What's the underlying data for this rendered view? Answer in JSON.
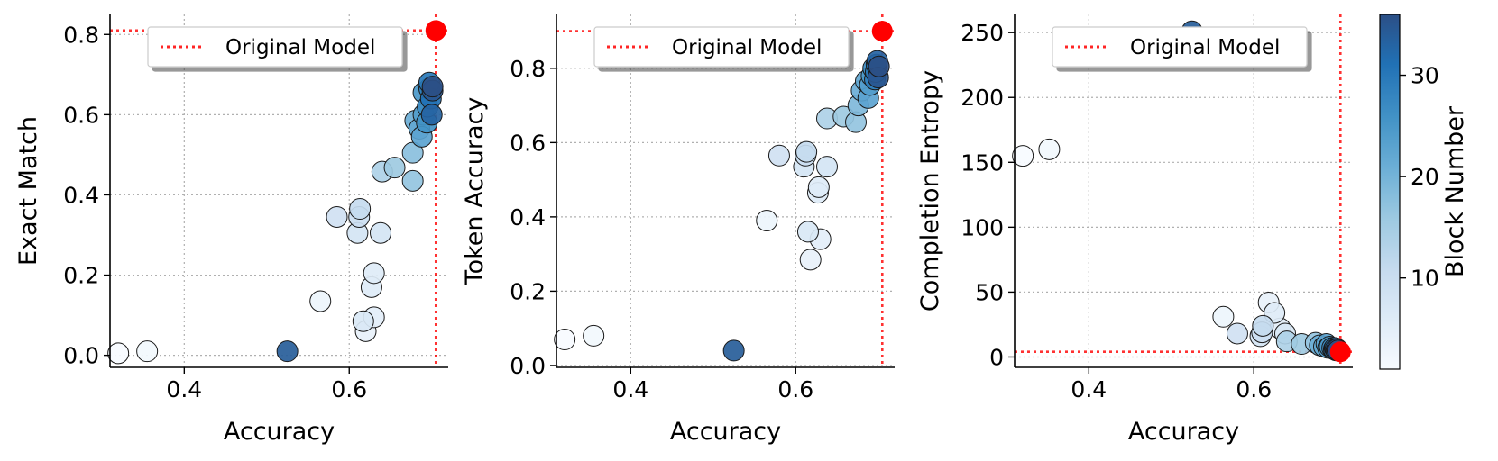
{
  "legend_label": "Original Model",
  "colors": {
    "reference": "#ff0000",
    "marker_edge": "#1a1a1a",
    "grid": "#b0b0b0",
    "colormap": [
      "#f7fbff",
      "#deebf7",
      "#c6dbef",
      "#9ecae1",
      "#6baed6",
      "#4292c6",
      "#2171b5",
      "#2b4f86"
    ]
  },
  "colorbar": {
    "label": "Block Number",
    "min": 1,
    "max": 36,
    "ticks": [
      10,
      20,
      30
    ]
  },
  "chart_data": [
    {
      "type": "scatter",
      "xlabel": "Accuracy",
      "ylabel": "Exact Match",
      "xlim": [
        0.31,
        0.72
      ],
      "ylim": [
        -0.03,
        0.85
      ],
      "xticks": [
        0.4,
        0.6
      ],
      "yticks": [
        0.0,
        0.2,
        0.4,
        0.6,
        0.8
      ],
      "ytick_labels": [
        "0.0",
        "0.2",
        "0.4",
        "0.6",
        "0.8"
      ],
      "grid": true,
      "legend_position": "top-right",
      "reference": {
        "x": 0.705,
        "y": 0.81
      },
      "points": [
        {
          "x": 0.32,
          "y": 0.005,
          "block": 1
        },
        {
          "x": 0.355,
          "y": 0.01,
          "block": 2
        },
        {
          "x": 0.525,
          "y": 0.01,
          "block": 34
        },
        {
          "x": 0.565,
          "y": 0.135,
          "block": 3
        },
        {
          "x": 0.585,
          "y": 0.345,
          "block": 9
        },
        {
          "x": 0.61,
          "y": 0.305,
          "block": 8
        },
        {
          "x": 0.612,
          "y": 0.345,
          "block": 10
        },
        {
          "x": 0.613,
          "y": 0.365,
          "block": 11
        },
        {
          "x": 0.617,
          "y": 0.085,
          "block": 7
        },
        {
          "x": 0.62,
          "y": 0.06,
          "block": 4
        },
        {
          "x": 0.627,
          "y": 0.17,
          "block": 6
        },
        {
          "x": 0.63,
          "y": 0.095,
          "block": 5
        },
        {
          "x": 0.63,
          "y": 0.205,
          "block": 6
        },
        {
          "x": 0.638,
          "y": 0.305,
          "block": 8
        },
        {
          "x": 0.64,
          "y": 0.458,
          "block": 14
        },
        {
          "x": 0.655,
          "y": 0.468,
          "block": 16
        },
        {
          "x": 0.677,
          "y": 0.435,
          "block": 17
        },
        {
          "x": 0.677,
          "y": 0.505,
          "block": 18
        },
        {
          "x": 0.68,
          "y": 0.585,
          "block": 21
        },
        {
          "x": 0.685,
          "y": 0.565,
          "block": 22
        },
        {
          "x": 0.688,
          "y": 0.545,
          "block": 23
        },
        {
          "x": 0.69,
          "y": 0.6,
          "block": 24
        },
        {
          "x": 0.69,
          "y": 0.655,
          "block": 25
        },
        {
          "x": 0.694,
          "y": 0.58,
          "block": 26
        },
        {
          "x": 0.695,
          "y": 0.62,
          "block": 27
        },
        {
          "x": 0.697,
          "y": 0.665,
          "block": 29
        },
        {
          "x": 0.697,
          "y": 0.68,
          "block": 30
        },
        {
          "x": 0.699,
          "y": 0.64,
          "block": 31
        },
        {
          "x": 0.7,
          "y": 0.6,
          "block": 33
        },
        {
          "x": 0.701,
          "y": 0.66,
          "block": 35
        },
        {
          "x": 0.701,
          "y": 0.67,
          "block": 36
        }
      ]
    },
    {
      "type": "scatter",
      "xlabel": "Accuracy",
      "ylabel": "Token Accuracy",
      "xlim": [
        0.31,
        0.72
      ],
      "ylim": [
        -0.005,
        0.945
      ],
      "xticks": [
        0.4,
        0.6
      ],
      "yticks": [
        0.0,
        0.2,
        0.4,
        0.6,
        0.8
      ],
      "ytick_labels": [
        "0.0",
        "0.2",
        "0.4",
        "0.6",
        "0.8"
      ],
      "grid": true,
      "legend_position": "top-right",
      "reference": {
        "x": 0.705,
        "y": 0.9
      },
      "points": [
        {
          "x": 0.32,
          "y": 0.07,
          "block": 1
        },
        {
          "x": 0.355,
          "y": 0.08,
          "block": 2
        },
        {
          "x": 0.525,
          "y": 0.04,
          "block": 34
        },
        {
          "x": 0.565,
          "y": 0.39,
          "block": 3
        },
        {
          "x": 0.58,
          "y": 0.565,
          "block": 9
        },
        {
          "x": 0.61,
          "y": 0.535,
          "block": 8
        },
        {
          "x": 0.612,
          "y": 0.565,
          "block": 10
        },
        {
          "x": 0.613,
          "y": 0.575,
          "block": 11
        },
        {
          "x": 0.615,
          "y": 0.36,
          "block": 7
        },
        {
          "x": 0.618,
          "y": 0.285,
          "block": 4
        },
        {
          "x": 0.627,
          "y": 0.465,
          "block": 6
        },
        {
          "x": 0.628,
          "y": 0.48,
          "block": 6
        },
        {
          "x": 0.63,
          "y": 0.34,
          "block": 5
        },
        {
          "x": 0.638,
          "y": 0.535,
          "block": 8
        },
        {
          "x": 0.638,
          "y": 0.665,
          "block": 14
        },
        {
          "x": 0.658,
          "y": 0.67,
          "block": 16
        },
        {
          "x": 0.673,
          "y": 0.655,
          "block": 17
        },
        {
          "x": 0.676,
          "y": 0.7,
          "block": 19
        },
        {
          "x": 0.68,
          "y": 0.74,
          "block": 21
        },
        {
          "x": 0.685,
          "y": 0.765,
          "block": 22
        },
        {
          "x": 0.688,
          "y": 0.72,
          "block": 23
        },
        {
          "x": 0.69,
          "y": 0.755,
          "block": 24
        },
        {
          "x": 0.692,
          "y": 0.78,
          "block": 25
        },
        {
          "x": 0.694,
          "y": 0.8,
          "block": 27
        },
        {
          "x": 0.696,
          "y": 0.77,
          "block": 29
        },
        {
          "x": 0.697,
          "y": 0.79,
          "block": 30
        },
        {
          "x": 0.698,
          "y": 0.81,
          "block": 31
        },
        {
          "x": 0.699,
          "y": 0.82,
          "block": 33
        },
        {
          "x": 0.7,
          "y": 0.775,
          "block": 35
        },
        {
          "x": 0.701,
          "y": 0.805,
          "block": 36
        }
      ]
    },
    {
      "type": "scatter",
      "xlabel": "Accuracy",
      "ylabel": "Completion Entropy",
      "xlim": [
        0.31,
        0.72
      ],
      "ylim": [
        -8,
        264
      ],
      "xticks": [
        0.4,
        0.6
      ],
      "yticks": [
        0,
        50,
        100,
        150,
        200,
        250
      ],
      "ytick_labels": [
        "0",
        "50",
        "100",
        "150",
        "200",
        "250"
      ],
      "grid": true,
      "legend_position": "top-right",
      "reference": {
        "x": 0.705,
        "y": 4
      },
      "points": [
        {
          "x": 0.32,
          "y": 155,
          "block": 1
        },
        {
          "x": 0.352,
          "y": 160,
          "block": 2
        },
        {
          "x": 0.525,
          "y": 251,
          "block": 34
        },
        {
          "x": 0.563,
          "y": 31,
          "block": 3
        },
        {
          "x": 0.58,
          "y": 18,
          "block": 9
        },
        {
          "x": 0.608,
          "y": 16,
          "block": 8
        },
        {
          "x": 0.61,
          "y": 19,
          "block": 10
        },
        {
          "x": 0.611,
          "y": 24,
          "block": 11
        },
        {
          "x": 0.618,
          "y": 42,
          "block": 4
        },
        {
          "x": 0.625,
          "y": 34,
          "block": 6
        },
        {
          "x": 0.632,
          "y": 22,
          "block": 5
        },
        {
          "x": 0.638,
          "y": 18,
          "block": 7
        },
        {
          "x": 0.64,
          "y": 12,
          "block": 14
        },
        {
          "x": 0.658,
          "y": 10,
          "block": 16
        },
        {
          "x": 0.675,
          "y": 11,
          "block": 17
        },
        {
          "x": 0.68,
          "y": 9,
          "block": 21
        },
        {
          "x": 0.685,
          "y": 8,
          "block": 22
        },
        {
          "x": 0.688,
          "y": 10,
          "block": 23
        },
        {
          "x": 0.69,
          "y": 7,
          "block": 24
        },
        {
          "x": 0.692,
          "y": 8,
          "block": 25
        },
        {
          "x": 0.695,
          "y": 7,
          "block": 27
        },
        {
          "x": 0.697,
          "y": 6,
          "block": 29
        },
        {
          "x": 0.698,
          "y": 7,
          "block": 30
        },
        {
          "x": 0.699,
          "y": 6,
          "block": 31
        },
        {
          "x": 0.7,
          "y": 5,
          "block": 33
        },
        {
          "x": 0.701,
          "y": 6,
          "block": 35
        },
        {
          "x": 0.702,
          "y": 5,
          "block": 36
        }
      ]
    }
  ]
}
